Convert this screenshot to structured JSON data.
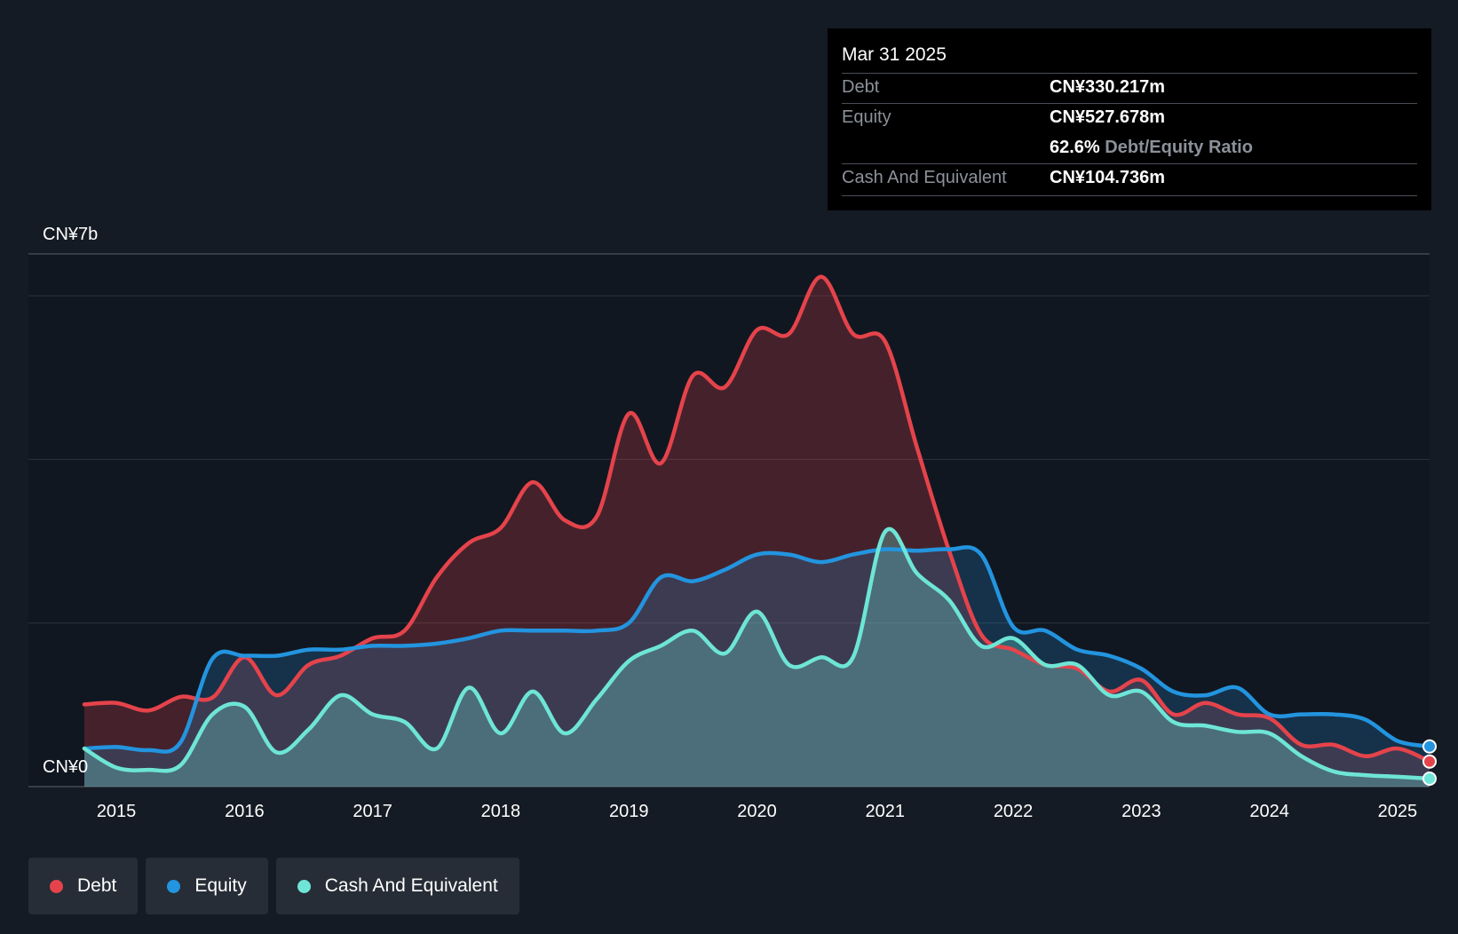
{
  "colors": {
    "background": "#151b24",
    "debt": "#e5434b",
    "equity": "#2394df",
    "cash": "#6ee5d6"
  },
  "tooltip": {
    "date": "Mar 31 2025",
    "debt_label": "Debt",
    "debt_value": "CN¥330.217m",
    "equity_label": "Equity",
    "equity_value": "CN¥527.678m",
    "ratio_pct": "62.6%",
    "ratio_label": "Debt/Equity Ratio",
    "cash_label": "Cash And Equivalent",
    "cash_value": "CN¥104.736m"
  },
  "legend": {
    "debt": "Debt",
    "equity": "Equity",
    "cash": "Cash And Equivalent"
  },
  "chart_data": {
    "type": "area",
    "title": "",
    "units": "CN¥ billions",
    "y_top_label": "CN¥7b",
    "y_bottom_label": "CN¥0",
    "ylim": [
      0,
      7
    ],
    "xlim": [
      2014.75,
      2025.25
    ],
    "x_tick_labels": [
      "2015",
      "2016",
      "2017",
      "2018",
      "2019",
      "2020",
      "2021",
      "2022",
      "2023",
      "2024",
      "2025"
    ],
    "series": [
      {
        "name": "Debt",
        "key": "debt",
        "points": [
          [
            2014.75,
            1.08
          ],
          [
            2015.0,
            1.1
          ],
          [
            2015.25,
            1.0
          ],
          [
            2015.5,
            1.18
          ],
          [
            2015.75,
            1.17
          ],
          [
            2016.0,
            1.7
          ],
          [
            2016.25,
            1.2
          ],
          [
            2016.5,
            1.6
          ],
          [
            2016.75,
            1.72
          ],
          [
            2017.0,
            1.95
          ],
          [
            2017.25,
            2.05
          ],
          [
            2017.5,
            2.75
          ],
          [
            2017.75,
            3.2
          ],
          [
            2018.0,
            3.4
          ],
          [
            2018.25,
            4.0
          ],
          [
            2018.5,
            3.5
          ],
          [
            2018.75,
            3.55
          ],
          [
            2019.0,
            4.9
          ],
          [
            2019.25,
            4.25
          ],
          [
            2019.5,
            5.4
          ],
          [
            2019.75,
            5.25
          ],
          [
            2020.0,
            6.0
          ],
          [
            2020.25,
            5.95
          ],
          [
            2020.5,
            6.7
          ],
          [
            2020.75,
            5.95
          ],
          [
            2021.0,
            5.85
          ],
          [
            2021.25,
            4.45
          ],
          [
            2021.5,
            3.1
          ],
          [
            2021.75,
            2.0
          ],
          [
            2022.0,
            1.8
          ],
          [
            2022.25,
            1.6
          ],
          [
            2022.5,
            1.55
          ],
          [
            2022.75,
            1.25
          ],
          [
            2023.0,
            1.4
          ],
          [
            2023.25,
            0.95
          ],
          [
            2023.5,
            1.1
          ],
          [
            2023.75,
            0.95
          ],
          [
            2024.0,
            0.9
          ],
          [
            2024.25,
            0.55
          ],
          [
            2024.5,
            0.55
          ],
          [
            2024.75,
            0.4
          ],
          [
            2025.0,
            0.5
          ],
          [
            2025.25,
            0.33
          ]
        ]
      },
      {
        "name": "Equity",
        "key": "equity",
        "points": [
          [
            2014.75,
            0.5
          ],
          [
            2015.0,
            0.52
          ],
          [
            2015.25,
            0.48
          ],
          [
            2015.5,
            0.58
          ],
          [
            2015.75,
            1.68
          ],
          [
            2016.0,
            1.72
          ],
          [
            2016.25,
            1.72
          ],
          [
            2016.5,
            1.8
          ],
          [
            2016.75,
            1.8
          ],
          [
            2017.0,
            1.85
          ],
          [
            2017.25,
            1.85
          ],
          [
            2017.5,
            1.88
          ],
          [
            2017.75,
            1.95
          ],
          [
            2018.0,
            2.05
          ],
          [
            2018.25,
            2.05
          ],
          [
            2018.5,
            2.05
          ],
          [
            2018.75,
            2.05
          ],
          [
            2019.0,
            2.15
          ],
          [
            2019.25,
            2.75
          ],
          [
            2019.5,
            2.7
          ],
          [
            2019.75,
            2.85
          ],
          [
            2020.0,
            3.05
          ],
          [
            2020.25,
            3.05
          ],
          [
            2020.5,
            2.95
          ],
          [
            2020.75,
            3.05
          ],
          [
            2021.0,
            3.12
          ],
          [
            2021.25,
            3.1
          ],
          [
            2021.5,
            3.12
          ],
          [
            2021.75,
            3.05
          ],
          [
            2022.0,
            2.1
          ],
          [
            2022.25,
            2.05
          ],
          [
            2022.5,
            1.8
          ],
          [
            2022.75,
            1.72
          ],
          [
            2023.0,
            1.55
          ],
          [
            2023.25,
            1.25
          ],
          [
            2023.5,
            1.2
          ],
          [
            2023.75,
            1.3
          ],
          [
            2024.0,
            0.95
          ],
          [
            2024.25,
            0.95
          ],
          [
            2024.5,
            0.95
          ],
          [
            2024.75,
            0.88
          ],
          [
            2025.0,
            0.6
          ],
          [
            2025.25,
            0.528
          ]
        ]
      },
      {
        "name": "Cash And Equivalent",
        "key": "cash",
        "points": [
          [
            2014.75,
            0.5
          ],
          [
            2015.0,
            0.25
          ],
          [
            2015.25,
            0.22
          ],
          [
            2015.5,
            0.28
          ],
          [
            2015.75,
            0.95
          ],
          [
            2016.0,
            1.05
          ],
          [
            2016.25,
            0.45
          ],
          [
            2016.5,
            0.75
          ],
          [
            2016.75,
            1.2
          ],
          [
            2017.0,
            0.95
          ],
          [
            2017.25,
            0.85
          ],
          [
            2017.5,
            0.5
          ],
          [
            2017.75,
            1.3
          ],
          [
            2018.0,
            0.7
          ],
          [
            2018.25,
            1.25
          ],
          [
            2018.5,
            0.7
          ],
          [
            2018.75,
            1.15
          ],
          [
            2019.0,
            1.65
          ],
          [
            2019.25,
            1.85
          ],
          [
            2019.5,
            2.05
          ],
          [
            2019.75,
            1.75
          ],
          [
            2020.0,
            2.3
          ],
          [
            2020.25,
            1.6
          ],
          [
            2020.5,
            1.7
          ],
          [
            2020.75,
            1.7
          ],
          [
            2021.0,
            3.35
          ],
          [
            2021.25,
            2.8
          ],
          [
            2021.5,
            2.45
          ],
          [
            2021.75,
            1.85
          ],
          [
            2022.0,
            1.95
          ],
          [
            2022.25,
            1.6
          ],
          [
            2022.5,
            1.6
          ],
          [
            2022.75,
            1.2
          ],
          [
            2023.0,
            1.25
          ],
          [
            2023.25,
            0.85
          ],
          [
            2023.5,
            0.8
          ],
          [
            2023.75,
            0.72
          ],
          [
            2024.0,
            0.7
          ],
          [
            2024.25,
            0.4
          ],
          [
            2024.5,
            0.2
          ],
          [
            2024.75,
            0.15
          ],
          [
            2025.0,
            0.13
          ],
          [
            2025.25,
            0.105
          ]
        ]
      }
    ]
  }
}
